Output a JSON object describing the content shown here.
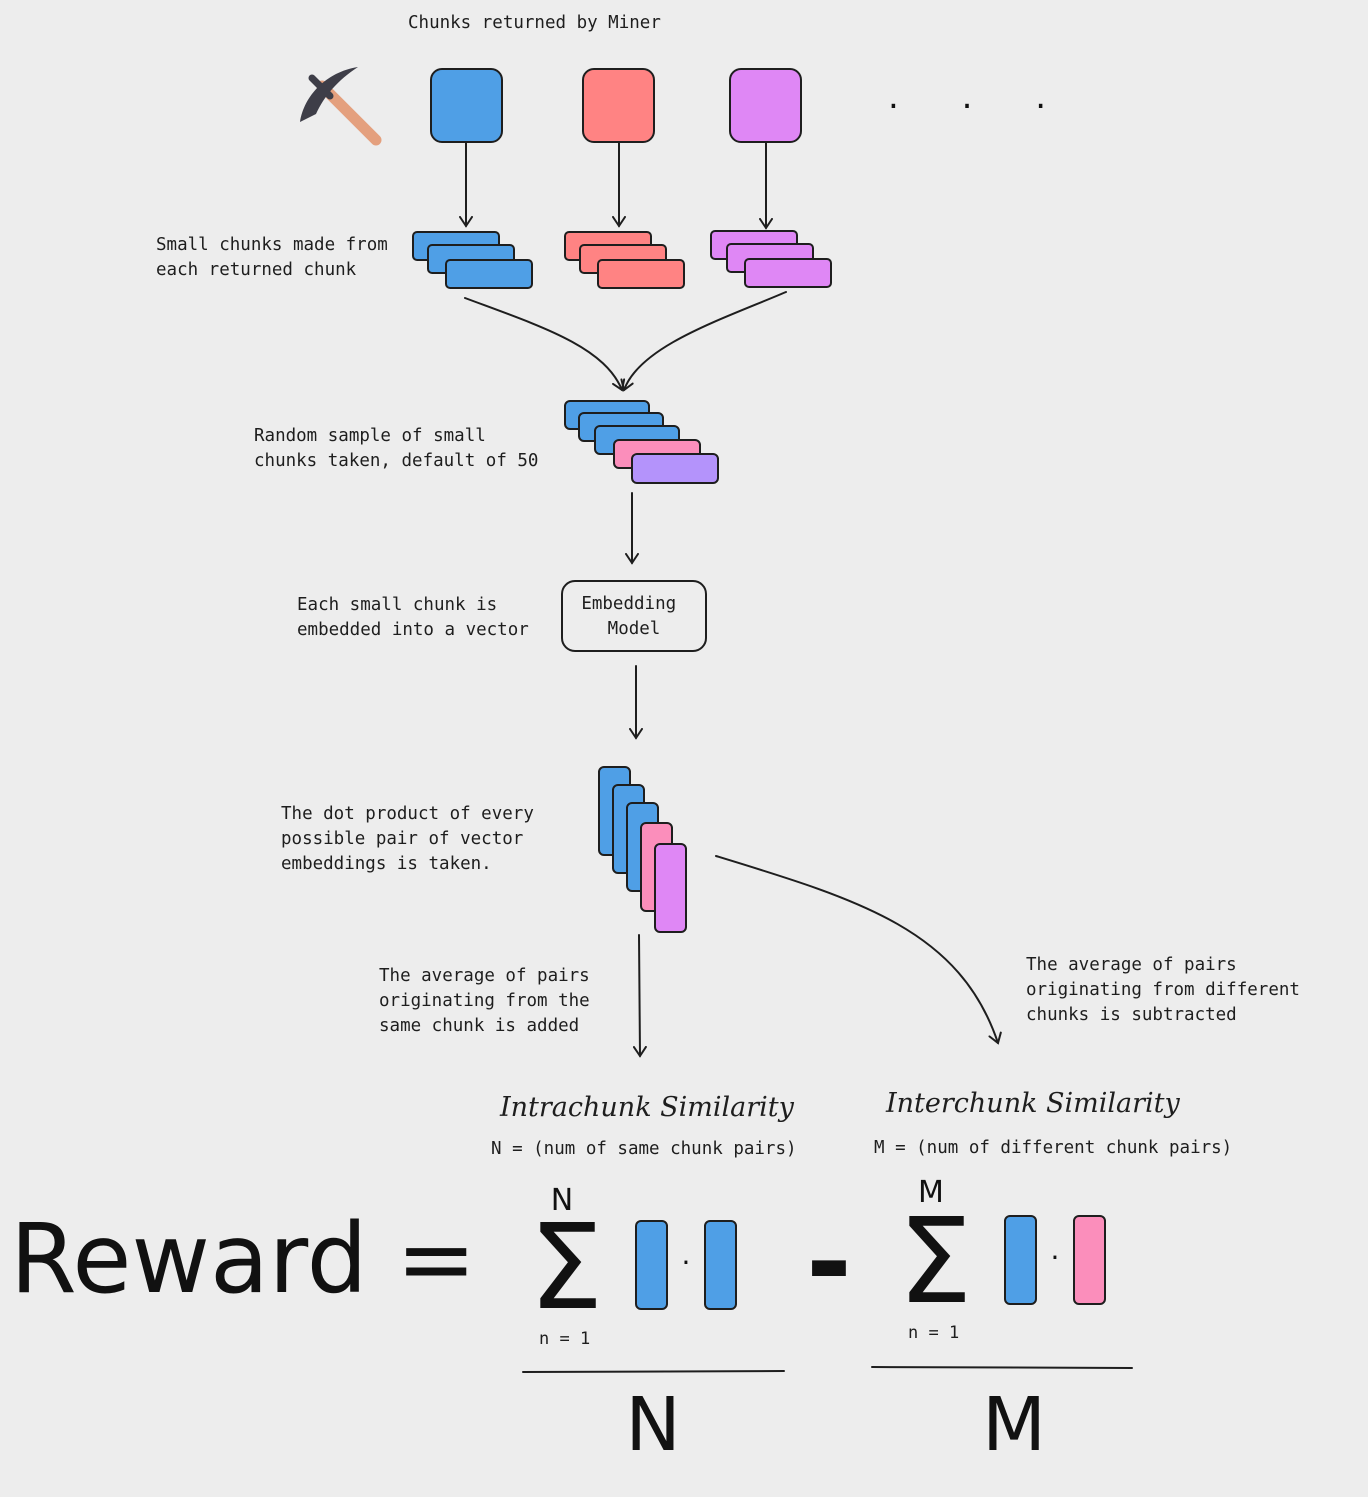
{
  "title": "Chunks returned by Miner",
  "ellipsis": ". . .",
  "labels": {
    "small_chunks": [
      "Small chunks made from",
      "each returned chunk"
    ],
    "random_sample": [
      "Random sample of small",
      "chunks taken, default of 50"
    ],
    "embedded": [
      "Each small chunk is",
      "embedded into a vector"
    ],
    "dot_product": [
      "The dot product of every",
      "possible pair of vector",
      "embeddings is taken."
    ],
    "same_chunk": [
      "The average of pairs",
      "originating from the",
      "same chunk is added"
    ],
    "different_chunk": [
      "The average of pairs",
      "originating from different",
      "chunks is subtracted"
    ]
  },
  "embedding_model": [
    "Embedding",
    "Model"
  ],
  "intrachunk": {
    "heading": "Intrachunk Similarity",
    "definition": "N = (num of same chunk pairs)",
    "sum_top": "N",
    "sum_bottom": "n = 1",
    "denominator": "N"
  },
  "interchunk": {
    "heading": "Interchunk Similarity",
    "definition": "M = (num of different chunk pairs)",
    "sum_top": "M",
    "sum_bottom": "n = 1",
    "denominator": "M"
  },
  "formula": {
    "reward": "Reward",
    "equals": "=",
    "minus": "-",
    "sigma": "Σ",
    "dot": "·"
  },
  "icons": {
    "miner": "pickaxe-icon"
  },
  "colors": {
    "blue": "#4f9fe6",
    "red": "#ff8383",
    "purple": "#df87f5",
    "pink": "#fb8ebb",
    "violet": "#b493fb",
    "background": "#ededed",
    "ink": "#1e1e1e"
  }
}
